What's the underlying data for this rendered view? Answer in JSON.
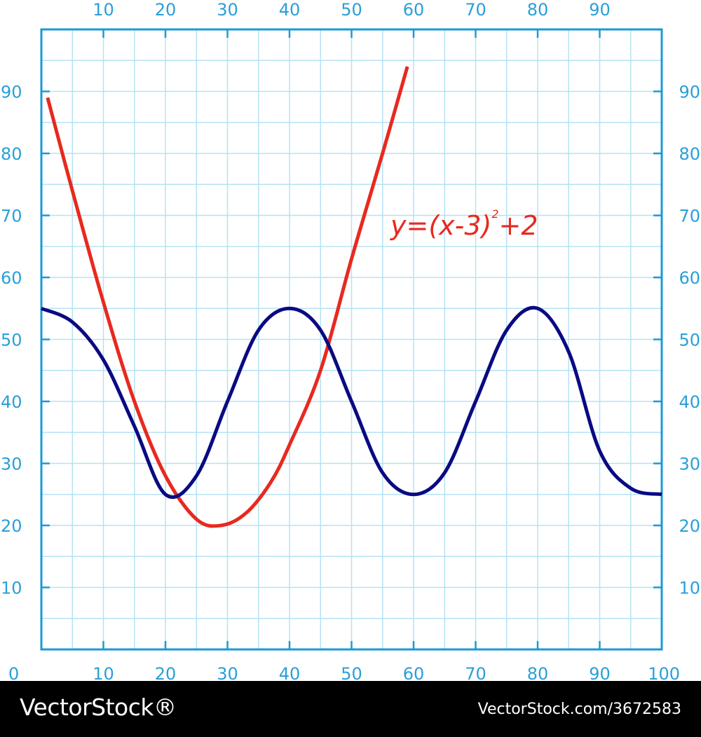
{
  "chart_data": {
    "type": "line",
    "title": "",
    "xlabel": "",
    "ylabel": "",
    "xlim": [
      0,
      100
    ],
    "ylim": [
      0,
      100
    ],
    "grid": true,
    "x_ticks_bottom": [
      "0",
      "10",
      "20",
      "30",
      "40",
      "50",
      "60",
      "70",
      "80",
      "90",
      "100"
    ],
    "x_ticks_top": [
      "10",
      "20",
      "30",
      "40",
      "50",
      "60",
      "70",
      "80",
      "90"
    ],
    "y_ticks_left": [
      "10",
      "20",
      "30",
      "40",
      "50",
      "60",
      "70",
      "80",
      "90"
    ],
    "y_ticks_right": [
      "10",
      "20",
      "30",
      "40",
      "50",
      "60",
      "70",
      "80",
      "90"
    ],
    "annotation": {
      "base": "y=(x-3)",
      "superscript": "2",
      "tail": "+2"
    },
    "series": [
      {
        "color": "#e8291f",
        "x": [
          1,
          5,
          10,
          15,
          20,
          25,
          29,
          33,
          37,
          40,
          45,
          50,
          55,
          59
        ],
        "y": [
          89,
          74,
          56,
          40,
          28,
          21,
          20,
          22,
          27,
          33,
          45,
          63,
          80,
          94
        ]
      },
      {
        "color": "#0a0a82",
        "x": [
          0,
          5,
          10,
          15,
          20,
          25,
          30,
          35,
          40,
          45,
          50,
          55,
          60,
          65,
          70,
          75,
          80,
          85,
          90,
          95,
          100
        ],
        "y": [
          55,
          52.8,
          46.7,
          36,
          25,
          28,
          40,
          51.5,
          55,
          51.5,
          40,
          28.5,
          25,
          28.5,
          40,
          51.5,
          55,
          48,
          32,
          26,
          25
        ]
      }
    ],
    "colors": {
      "axis": "#1a9ad6",
      "grid": "#b5e2f5",
      "tick_label": "#2a9fd8"
    }
  },
  "footer": {
    "brand": "VectorStock®",
    "url": "VectorStock.com/3672583"
  }
}
